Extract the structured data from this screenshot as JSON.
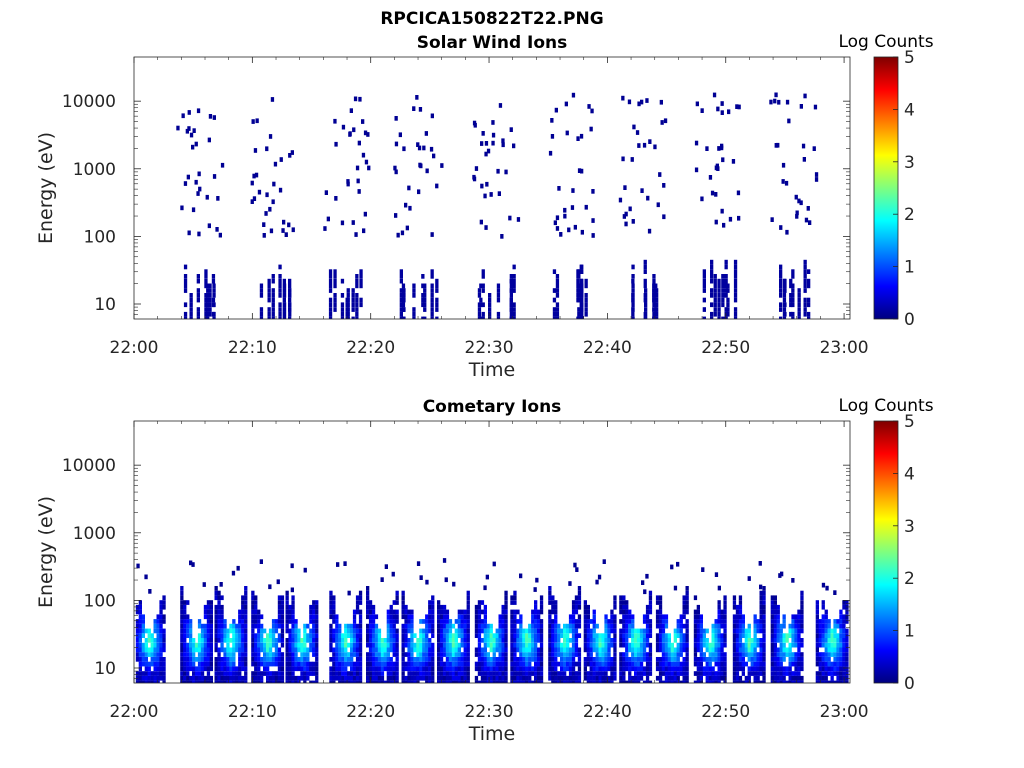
{
  "figure": {
    "title": "RPCICA150822T22.PNG"
  },
  "colormap": {
    "name": "jet",
    "stops": [
      "#00007F",
      "#0000FF",
      "#007FFF",
      "#00FFFF",
      "#7FFF7F",
      "#FFFF00",
      "#FF7F00",
      "#FF0000",
      "#7F0000"
    ]
  },
  "chart_data": [
    {
      "type": "heatmap",
      "title": "Solar Wind Ions",
      "xlabel": "Time",
      "ylabel": "Energy (eV)",
      "x_tick_labels": [
        "22:00",
        "22:10",
        "22:20",
        "22:30",
        "22:40",
        "22:50",
        "23:00"
      ],
      "x_ticks_min": [
        0,
        10,
        20,
        30,
        40,
        50,
        60
      ],
      "xlim_min": [
        0,
        60.5
      ],
      "y_scale": "log",
      "y_tick_labels": [
        "10",
        "100",
        "1000",
        "10000"
      ],
      "y_ticks": [
        10,
        100,
        1000,
        10000
      ],
      "ylim": [
        6,
        45000
      ],
      "colorbar": {
        "label": "Log Counts",
        "range": [
          0,
          5
        ],
        "tick_labels": [
          "0",
          "1",
          "2",
          "3",
          "4",
          "5"
        ],
        "ticks": [
          0,
          1,
          2,
          3,
          4,
          5
        ]
      },
      "scan_period_min": 6.5,
      "scan_centers_min": [
        5.5,
        11.8,
        17.8,
        23.9,
        30.4,
        36.8,
        42.9,
        49.2,
        55.6
      ],
      "distribution": "sparse single counts (log counts 0-0.3) scattered between ~100 eV and ~15000 eV plus dense low-count columns at 6-45 eV during each scan",
      "grid": false
    },
    {
      "type": "heatmap",
      "title": "Cometary Ions",
      "xlabel": "Time",
      "ylabel": "Energy (eV)",
      "x_tick_labels": [
        "22:00",
        "22:10",
        "22:20",
        "22:30",
        "22:40",
        "22:50",
        "23:00"
      ],
      "x_ticks_min": [
        0,
        10,
        20,
        30,
        40,
        50,
        60
      ],
      "xlim_min": [
        0,
        60.5
      ],
      "y_scale": "log",
      "y_tick_labels": [
        "10",
        "100",
        "1000",
        "10000"
      ],
      "y_ticks": [
        10,
        100,
        1000,
        10000
      ],
      "ylim": [
        6,
        45000
      ],
      "colorbar": {
        "label": "Log Counts",
        "range": [
          0,
          5
        ],
        "tick_labels": [
          "0",
          "1",
          "2",
          "3",
          "4",
          "5"
        ],
        "ticks": [
          0,
          1,
          2,
          3,
          4,
          5
        ]
      },
      "scan_period_min": 3.25,
      "scan_centers_min": [
        1.2,
        5.2,
        8.1,
        11.2,
        14.1,
        17.8,
        20.9,
        23.9,
        26.9,
        30.1,
        33.1,
        36.3,
        39.3,
        42.3,
        45.4,
        48.6,
        51.9,
        55.1,
        58.9
      ],
      "distribution": "V-shaped bursts each scan: dense counts from ~6 eV up to ~60-200 eV, peak log counts ~1.5-2 near 20-40 eV",
      "grid": false
    }
  ]
}
